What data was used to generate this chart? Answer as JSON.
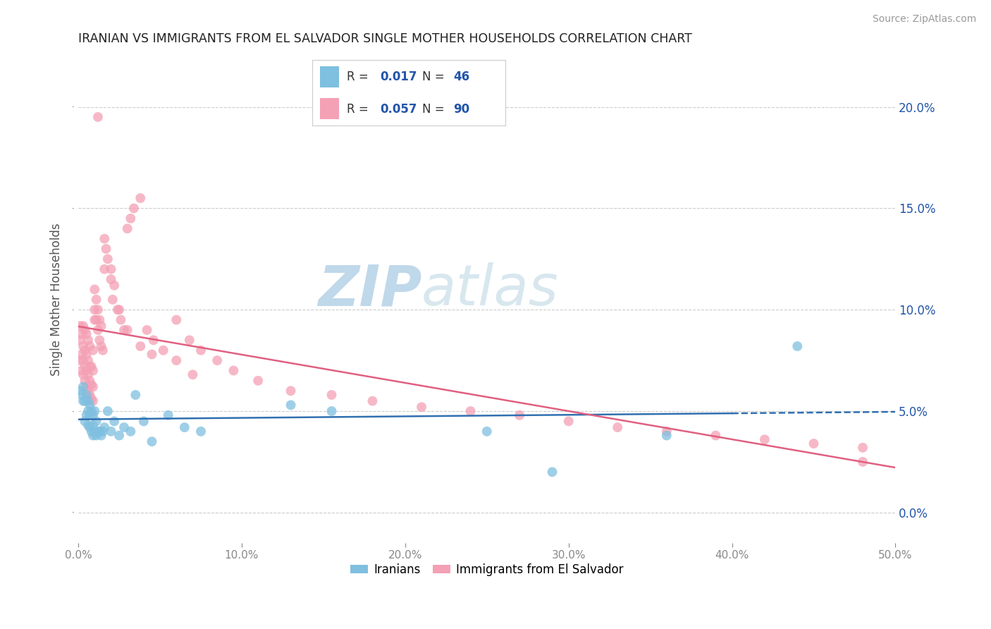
{
  "title": "IRANIAN VS IMMIGRANTS FROM EL SALVADOR SINGLE MOTHER HOUSEHOLDS CORRELATION CHART",
  "source": "Source: ZipAtlas.com",
  "ylabel": "Single Mother Households",
  "xlim": [
    0.0,
    0.5
  ],
  "ylim": [
    -0.015,
    0.225
  ],
  "yticks": [
    0.0,
    0.05,
    0.1,
    0.15,
    0.2
  ],
  "ytick_labels": [
    "0.0%",
    "5.0%",
    "10.0%",
    "15.0%",
    "20.0%"
  ],
  "xticks": [
    0.0,
    0.1,
    0.2,
    0.3,
    0.4,
    0.5
  ],
  "xtick_labels": [
    "0.0%",
    "10.0%",
    "20.0%",
    "30.0%",
    "40.0%",
    "50.0%"
  ],
  "iranian_R": "0.017",
  "iranian_N": "46",
  "sal_R": "0.057",
  "sal_N": "90",
  "iranian_color": "#7fbfdf",
  "el_salvador_color": "#f4a0b5",
  "iranian_line_color": "#3070b0",
  "el_salvador_line_color": "#e06080",
  "title_color": "#222222",
  "source_color": "#999999",
  "watermark_zip": "ZIP",
  "watermark_atlas": "atlas",
  "watermark_color": "#c8dff0",
  "axis_label_color": "#2255aa",
  "background_color": "#ffffff",
  "grid_color": "#cccccc",
  "iranians_x": [
    0.001,
    0.002,
    0.003,
    0.003,
    0.004,
    0.004,
    0.005,
    0.005,
    0.006,
    0.006,
    0.006,
    0.007,
    0.007,
    0.007,
    0.008,
    0.008,
    0.009,
    0.009,
    0.009,
    0.01,
    0.01,
    0.011,
    0.011,
    0.012,
    0.013,
    0.014,
    0.015,
    0.016,
    0.018,
    0.02,
    0.022,
    0.025,
    0.028,
    0.032,
    0.035,
    0.04,
    0.045,
    0.055,
    0.065,
    0.075,
    0.13,
    0.155,
    0.25,
    0.29,
    0.36,
    0.44
  ],
  "iranians_y": [
    0.06,
    0.058,
    0.055,
    0.062,
    0.045,
    0.055,
    0.048,
    0.058,
    0.043,
    0.05,
    0.055,
    0.042,
    0.048,
    0.053,
    0.04,
    0.05,
    0.038,
    0.043,
    0.048,
    0.04,
    0.05,
    0.038,
    0.045,
    0.04,
    0.04,
    0.038,
    0.04,
    0.042,
    0.05,
    0.04,
    0.045,
    0.038,
    0.042,
    0.04,
    0.058,
    0.045,
    0.035,
    0.048,
    0.042,
    0.04,
    0.053,
    0.05,
    0.04,
    0.02,
    0.038,
    0.082
  ],
  "el_salvador_x": [
    0.001,
    0.001,
    0.001,
    0.002,
    0.002,
    0.002,
    0.003,
    0.003,
    0.003,
    0.003,
    0.004,
    0.004,
    0.004,
    0.004,
    0.005,
    0.005,
    0.005,
    0.005,
    0.006,
    0.006,
    0.006,
    0.006,
    0.007,
    0.007,
    0.007,
    0.007,
    0.008,
    0.008,
    0.008,
    0.009,
    0.009,
    0.009,
    0.009,
    0.01,
    0.01,
    0.01,
    0.011,
    0.011,
    0.012,
    0.012,
    0.013,
    0.013,
    0.014,
    0.014,
    0.015,
    0.016,
    0.017,
    0.018,
    0.02,
    0.021,
    0.022,
    0.024,
    0.026,
    0.028,
    0.03,
    0.032,
    0.034,
    0.038,
    0.042,
    0.046,
    0.052,
    0.06,
    0.068,
    0.075,
    0.085,
    0.095,
    0.11,
    0.13,
    0.155,
    0.18,
    0.21,
    0.24,
    0.27,
    0.3,
    0.33,
    0.36,
    0.39,
    0.42,
    0.45,
    0.48,
    0.012,
    0.016,
    0.02,
    0.025,
    0.03,
    0.038,
    0.045,
    0.06,
    0.07,
    0.48
  ],
  "el_salvador_y": [
    0.075,
    0.085,
    0.092,
    0.07,
    0.078,
    0.088,
    0.068,
    0.075,
    0.082,
    0.092,
    0.065,
    0.072,
    0.08,
    0.09,
    0.062,
    0.07,
    0.078,
    0.088,
    0.06,
    0.068,
    0.075,
    0.085,
    0.058,
    0.065,
    0.072,
    0.082,
    0.056,
    0.063,
    0.072,
    0.055,
    0.062,
    0.07,
    0.08,
    0.095,
    0.1,
    0.11,
    0.095,
    0.105,
    0.09,
    0.1,
    0.085,
    0.095,
    0.082,
    0.092,
    0.08,
    0.12,
    0.13,
    0.125,
    0.115,
    0.105,
    0.112,
    0.1,
    0.095,
    0.09,
    0.14,
    0.145,
    0.15,
    0.155,
    0.09,
    0.085,
    0.08,
    0.095,
    0.085,
    0.08,
    0.075,
    0.07,
    0.065,
    0.06,
    0.058,
    0.055,
    0.052,
    0.05,
    0.048,
    0.045,
    0.042,
    0.04,
    0.038,
    0.036,
    0.034,
    0.032,
    0.195,
    0.135,
    0.12,
    0.1,
    0.09,
    0.082,
    0.078,
    0.075,
    0.068,
    0.025
  ]
}
